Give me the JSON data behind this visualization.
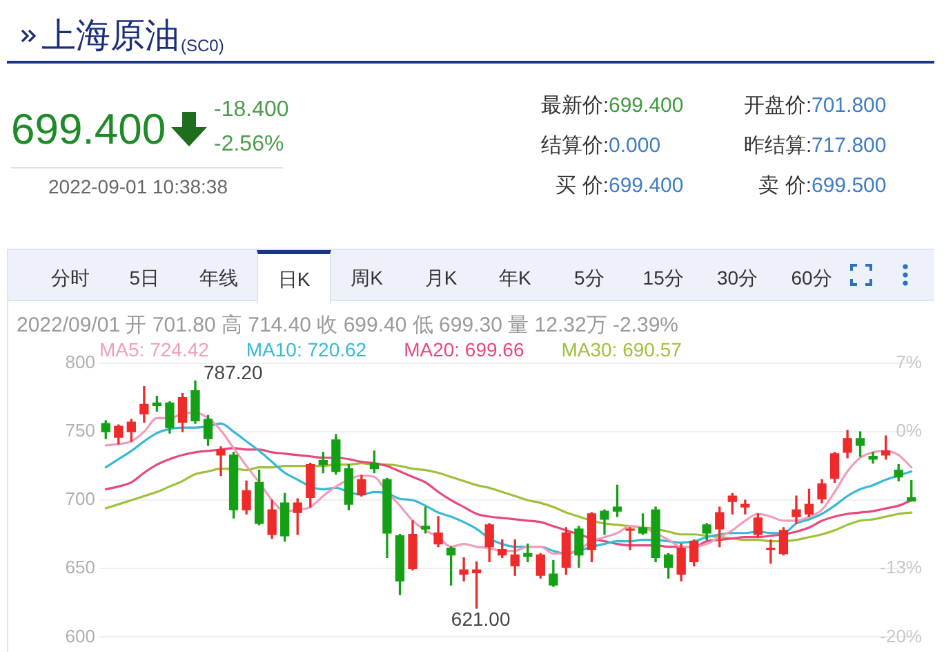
{
  "chart_data": {
    "type": "candlestick",
    "title": "上海原油$_{(SC0)}$",
    "categories": [
      null,
      null,
      null,
      null,
      null,
      null,
      null,
      null,
      null,
      null,
      null,
      null,
      null,
      null,
      null,
      null,
      null,
      null,
      null,
      null,
      null,
      null,
      null,
      null,
      null,
      null,
      null,
      null,
      null,
      null,
      null,
      null,
      null,
      null,
      null,
      null,
      null,
      null,
      null,
      null,
      null,
      null,
      null,
      null,
      null,
      null,
      null,
      null,
      null,
      null,
      null,
      null,
      null,
      null,
      null,
      null,
      null,
      null,
      null,
      null,
      null,
      null,
      null,
      null
    ],
    "ohlc": [
      [
        756,
        758,
        745,
        750
      ],
      [
        746,
        755,
        741,
        754
      ],
      [
        750,
        759,
        743,
        757
      ],
      [
        763,
        783,
        757,
        770
      ],
      [
        771,
        776,
        765,
        769
      ],
      [
        771,
        772,
        749,
        753
      ],
      [
        757,
        778,
        750,
        775
      ],
      [
        780,
        787.2,
        756,
        758
      ],
      [
        759,
        762,
        740,
        745
      ],
      [
        733,
        739,
        718,
        737
      ],
      [
        733,
        735,
        687,
        693
      ],
      [
        693,
        714,
        690,
        707
      ],
      [
        713,
        722,
        682,
        683
      ],
      [
        675,
        700,
        672,
        693
      ],
      [
        698,
        705,
        670,
        674
      ],
      [
        691,
        701,
        675,
        698
      ],
      [
        702,
        727,
        695,
        726
      ],
      [
        729,
        735,
        720,
        726
      ],
      [
        744,
        748,
        719,
        721
      ],
      [
        723,
        726,
        693,
        697
      ],
      [
        704,
        718,
        703,
        715
      ],
      [
        727,
        736,
        720,
        723
      ],
      [
        715,
        716,
        658,
        676
      ],
      [
        674,
        675,
        631,
        641
      ],
      [
        650,
        685,
        649,
        675
      ],
      [
        681,
        695,
        676,
        679
      ],
      [
        668,
        688,
        666,
        676
      ],
      [
        665,
        666,
        638,
        660
      ],
      [
        646,
        658,
        641,
        649
      ],
      [
        647,
        655,
        621,
        649
      ],
      [
        666,
        683,
        655,
        682
      ],
      [
        660,
        671,
        658,
        664
      ],
      [
        652,
        671,
        645,
        660
      ],
      [
        661,
        668,
        655,
        659
      ],
      [
        645,
        661,
        643,
        660
      ],
      [
        646,
        656,
        637,
        638
      ],
      [
        651,
        680,
        646,
        676
      ],
      [
        679,
        681,
        651,
        660
      ],
      [
        664,
        691,
        655,
        690
      ],
      [
        692,
        693,
        675,
        686
      ],
      [
        695,
        711,
        688,
        692
      ],
      [
        678,
        680,
        664,
        679
      ],
      [
        680,
        690,
        675,
        676
      ],
      [
        693,
        695,
        655,
        658
      ],
      [
        660,
        661,
        643,
        651
      ],
      [
        646,
        668,
        641,
        665
      ],
      [
        655,
        671,
        652,
        670
      ],
      [
        682,
        683,
        671,
        676
      ],
      [
        679,
        695,
        666,
        691
      ],
      [
        699,
        705,
        690,
        703
      ],
      [
        695,
        700,
        690,
        697
      ],
      [
        675,
        690,
        673,
        687
      ],
      [
        664,
        671,
        654,
        665
      ],
      [
        661,
        680,
        660,
        678
      ],
      [
        688,
        703,
        683,
        693
      ],
      [
        690,
        708,
        688,
        697
      ],
      [
        701,
        715,
        698,
        712
      ],
      [
        716,
        735,
        713,
        734
      ],
      [
        735,
        751,
        731,
        745
      ],
      [
        745,
        750,
        732,
        740
      ],
      [
        732,
        735,
        727,
        730
      ],
      [
        733,
        747,
        730,
        736
      ],
      [
        722,
        726,
        714,
        717
      ],
      [
        701.8,
        714.4,
        699.3,
        699.4
      ]
    ],
    "colors": [
      "#14a014",
      "#ee2a2a",
      "#ee2a2a",
      "#ee2a2a",
      "#14a014",
      "#14a014",
      "#ee2a2a",
      "#14a014",
      "#14a014",
      "#ee2a2a",
      "#14a014",
      "#ee2a2a",
      "#14a014",
      "#ee2a2a",
      "#14a014",
      "#ee2a2a",
      "#ee2a2a",
      "#14a014",
      "#14a014",
      "#14a014",
      "#ee2a2a",
      "#14a014",
      "#14a014",
      "#14a014",
      "#ee2a2a",
      "#14a014",
      "#ee2a2a",
      "#14a014",
      "#ee2a2a",
      "#ee2a2a",
      "#ee2a2a",
      "#ee2a2a",
      "#ee2a2a",
      "#14a014",
      "#ee2a2a",
      "#14a014",
      "#ee2a2a",
      "#14a014",
      "#ee2a2a",
      "#14a014",
      "#14a014",
      "#ee2a2a",
      "#14a014",
      "#14a014",
      "#14a014",
      "#ee2a2a",
      "#ee2a2a",
      "#14a014",
      "#ee2a2a",
      "#ee2a2a",
      "#ee2a2a",
      "#ee2a2a",
      "#ee2a2a",
      "#ee2a2a",
      "#ee2a2a",
      "#ee2a2a",
      "#ee2a2a",
      "#ee2a2a",
      "#ee2a2a",
      "#14a014",
      "#14a014",
      "#ee2a2a",
      "#14a014",
      "#14a014"
    ],
    "series": [
      {
        "name": "MA5: 724.42",
        "type": "line",
        "color": "#f29cba",
        "values": [
          740,
          741,
          743,
          750,
          760,
          760,
          763,
          764,
          760,
          751,
          738,
          725,
          713,
          700,
          692,
          693,
          695,
          703,
          710,
          715,
          718,
          717,
          706,
          696,
          685,
          678,
          673,
          666,
          668,
          666,
          665,
          663,
          663,
          666,
          666,
          661,
          661,
          664,
          670,
          673,
          676,
          681,
          680,
          676,
          671,
          666,
          666,
          668,
          673,
          678,
          685,
          690,
          688,
          685,
          685,
          688,
          693,
          706,
          721,
          731,
          735,
          736,
          733,
          724
        ]
      },
      {
        "name": "MA10: 720.62",
        "type": "line",
        "color": "#36b8d6",
        "values": [
          724,
          730,
          736,
          743,
          749,
          752,
          753,
          753,
          754,
          756,
          750,
          743,
          736,
          728,
          720,
          715,
          710,
          708,
          709,
          706,
          704,
          706,
          705,
          701,
          700,
          696,
          691,
          688,
          684,
          679,
          672,
          668,
          666,
          666,
          666,
          663,
          661,
          663,
          666,
          668,
          670,
          670,
          671,
          671,
          670,
          669,
          670,
          673,
          675,
          676,
          676,
          677,
          676,
          676,
          683,
          686,
          690,
          696,
          703,
          708,
          711,
          715,
          718,
          721
        ]
      },
      {
        "name": "MA20: 699.66",
        "type": "line",
        "color": "#e8487c",
        "values": [
          708,
          710,
          713,
          720,
          726,
          730,
          733,
          735,
          736,
          737,
          738,
          737,
          737,
          735,
          734,
          733,
          732,
          731,
          731,
          730,
          728,
          727,
          725,
          721,
          717,
          713,
          706,
          700,
          695,
          690,
          688,
          687,
          686,
          685,
          684,
          681,
          678,
          675,
          672,
          670,
          668,
          667,
          667,
          667,
          666,
          666,
          666,
          670,
          671,
          672,
          673,
          673,
          674,
          675,
          677,
          680,
          685,
          688,
          690,
          691,
          692,
          694,
          696,
          700
        ]
      },
      {
        "name": "MA30: 690.57",
        "type": "line",
        "color": "#9ec03a",
        "values": [
          694,
          697,
          700,
          703,
          706,
          710,
          714,
          719,
          721,
          723,
          723,
          722,
          724,
          724,
          725,
          725,
          725,
          725,
          726,
          726,
          727,
          726,
          726,
          725,
          723,
          722,
          720,
          717,
          714,
          711,
          709,
          706,
          703,
          700,
          698,
          695,
          691,
          688,
          685,
          683,
          682,
          681,
          680,
          679,
          677,
          675,
          675,
          674,
          673,
          672,
          671,
          671,
          670,
          670,
          671,
          673,
          675,
          678,
          682,
          685,
          686,
          688,
          690,
          691
        ]
      }
    ],
    "ylim": [
      600,
      800
    ],
    "yticks": [
      600,
      650,
      700,
      750,
      800
    ],
    "y2lim": [
      -20,
      6.67
    ],
    "y2ticks": [
      {
        "value": -20,
        "label": "-20%"
      },
      {
        "value": -13.33,
        "label": "-13%"
      },
      {
        "value": 0,
        "label": "0%"
      },
      {
        "value": 6.67,
        "label": "7%"
      }
    ],
    "grid": "y",
    "legend": "top left",
    "annotations": [
      "699.400",
      "-18.400",
      "-2.56%",
      "2022-09-01 10:38:38",
      "最新价:699.400",
      "开盘价:701.800",
      "结算价:0.000",
      "昨结算:717.800",
      "买 价:699.400",
      "卖 价:699.500",
      "分时",
      "5日",
      "年线",
      "日K",
      "周K",
      "月K",
      "年K",
      "5分",
      "15分",
      "30分",
      "60分",
      "2022/09/01 开 701.80 高 714.40 收 699.40 低 699.30 量 12.32万 -2.39%",
      "787.20",
      {
        "text": "621.00",
        "y": 621
      }
    ]
  }
}
